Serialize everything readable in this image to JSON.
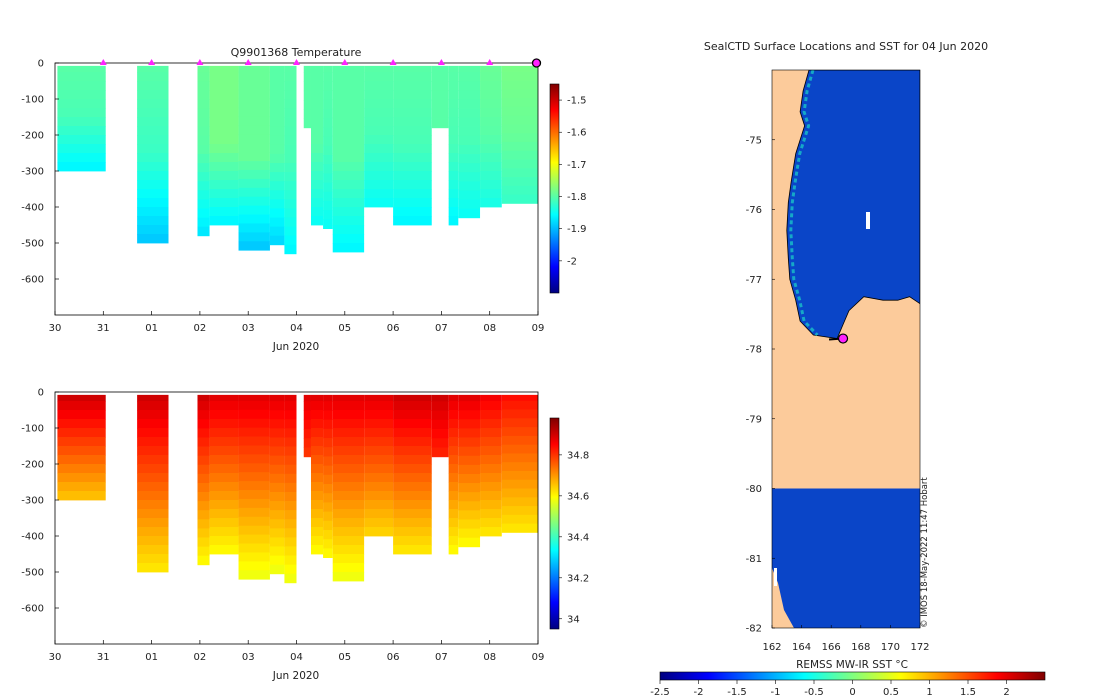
{
  "colors": {
    "land": "#fccb9b",
    "sea_cold": "#0a45c8",
    "marker": "#ff22ff",
    "marker_edge": "#000000",
    "axis": "#000000"
  },
  "chart_data": [
    {
      "type": "heatmap",
      "id": "temperature",
      "title": "Q9901368  Temperature",
      "xlabel": "Jun 2020",
      "ylabel": "",
      "x_tick_labels": [
        "30",
        "31",
        "01",
        "02",
        "03",
        "04",
        "05",
        "06",
        "07",
        "08",
        "09"
      ],
      "x_tick_days": [
        0,
        1,
        2,
        3,
        4,
        5,
        6,
        7,
        8,
        9,
        10
      ],
      "xlim": [
        0,
        10
      ],
      "ylim": [
        -700,
        0
      ],
      "y_ticks": [
        0,
        -100,
        -200,
        -300,
        -400,
        -500,
        -600
      ],
      "colorbar": {
        "range": [
          -2.1,
          -1.45
        ],
        "ticks": [
          -1.5,
          -1.6,
          -1.7,
          -1.8,
          -1.9,
          -2
        ],
        "tick_labels": [
          "-1.5",
          "-1.6",
          "-1.7",
          "-1.8",
          "-1.9",
          "-2"
        ],
        "colormap": "jet"
      },
      "profile_days": [
        1,
        2,
        3,
        4,
        5,
        6,
        7,
        8,
        9,
        10
      ],
      "profiles": [
        {
          "t0": 0.05,
          "t1": 1.05,
          "depth": 300,
          "top": -1.8,
          "mid": -1.81,
          "bottom": -1.86
        },
        {
          "t0": 1.7,
          "t1": 2.35,
          "depth": 500,
          "top": -1.8,
          "mid": -1.82,
          "bottom": -1.89
        },
        {
          "t0": 2.95,
          "t1": 3.2,
          "depth": 480,
          "top": -1.79,
          "mid": -1.8,
          "bottom": -1.87
        },
        {
          "t0": 3.2,
          "t1": 3.8,
          "depth": 450,
          "top": -1.78,
          "mid": -1.78,
          "bottom": -1.86
        },
        {
          "t0": 3.8,
          "t1": 4.45,
          "depth": 520,
          "top": -1.79,
          "mid": -1.79,
          "bottom": -1.89
        },
        {
          "t0": 4.45,
          "t1": 4.75,
          "depth": 505,
          "top": -1.8,
          "mid": -1.8,
          "bottom": -1.88
        },
        {
          "t0": 4.75,
          "t1": 5.0,
          "depth": 530,
          "top": -1.8,
          "mid": -1.81,
          "bottom": -1.86
        },
        {
          "t0": 5.15,
          "t1": 5.3,
          "depth": 180,
          "top": -1.8,
          "mid": -1.8,
          "bottom": -1.8
        },
        {
          "t0": 5.3,
          "t1": 5.55,
          "depth": 450,
          "top": -1.8,
          "mid": -1.8,
          "bottom": -1.85
        },
        {
          "t0": 5.55,
          "t1": 5.75,
          "depth": 460,
          "top": -1.8,
          "mid": -1.81,
          "bottom": -1.85
        },
        {
          "t0": 5.75,
          "t1": 6.4,
          "depth": 525,
          "top": -1.8,
          "mid": -1.8,
          "bottom": -1.86
        },
        {
          "t0": 6.4,
          "t1": 7.0,
          "depth": 400,
          "top": -1.8,
          "mid": -1.81,
          "bottom": -1.85
        },
        {
          "t0": 7.0,
          "t1": 7.8,
          "depth": 450,
          "top": -1.8,
          "mid": -1.81,
          "bottom": -1.86
        },
        {
          "t0": 7.8,
          "t1": 8.15,
          "depth": 180,
          "top": -1.8,
          "mid": -1.8,
          "bottom": -1.8
        },
        {
          "t0": 8.15,
          "t1": 8.35,
          "depth": 450,
          "top": -1.8,
          "mid": -1.81,
          "bottom": -1.86
        },
        {
          "t0": 8.35,
          "t1": 8.8,
          "depth": 430,
          "top": -1.8,
          "mid": -1.81,
          "bottom": -1.85
        },
        {
          "t0": 8.8,
          "t1": 9.25,
          "depth": 400,
          "top": -1.79,
          "mid": -1.8,
          "bottom": -1.84
        },
        {
          "t0": 9.25,
          "t1": 10.0,
          "depth": 390,
          "top": -1.78,
          "mid": -1.79,
          "bottom": -1.82
        }
      ]
    },
    {
      "type": "heatmap",
      "id": "salinity",
      "title": "",
      "xlabel": "Jun 2020",
      "ylabel": "",
      "x_tick_labels": [
        "30",
        "31",
        "01",
        "02",
        "03",
        "04",
        "05",
        "06",
        "07",
        "08",
        "09"
      ],
      "x_tick_days": [
        0,
        1,
        2,
        3,
        4,
        5,
        6,
        7,
        8,
        9,
        10
      ],
      "xlim": [
        0,
        10
      ],
      "ylim": [
        -700,
        0
      ],
      "y_ticks": [
        0,
        -100,
        -200,
        -300,
        -400,
        -500,
        -600
      ],
      "colorbar": {
        "range": [
          33.95,
          34.98
        ],
        "ticks": [
          34.8,
          34.6,
          34.4,
          34.2,
          34
        ],
        "tick_labels": [
          "34.8",
          "34.6",
          "34.4",
          "34.2",
          "34"
        ],
        "colormap": "jet"
      },
      "profiles": [
        {
          "t0": 0.05,
          "t1": 1.05,
          "depth": 300,
          "top": 34.9,
          "bottom": 34.66
        },
        {
          "t0": 1.7,
          "t1": 2.35,
          "depth": 500,
          "top": 34.9,
          "bottom": 34.62
        },
        {
          "t0": 2.95,
          "t1": 3.2,
          "depth": 480,
          "top": 34.9,
          "bottom": 34.6
        },
        {
          "t0": 3.2,
          "t1": 3.8,
          "depth": 450,
          "top": 34.88,
          "bottom": 34.6
        },
        {
          "t0": 3.8,
          "t1": 4.45,
          "depth": 520,
          "top": 34.88,
          "bottom": 34.58
        },
        {
          "t0": 4.45,
          "t1": 4.75,
          "depth": 505,
          "top": 34.88,
          "bottom": 34.58
        },
        {
          "t0": 4.75,
          "t1": 5.0,
          "depth": 530,
          "top": 34.88,
          "bottom": 34.58
        },
        {
          "t0": 5.15,
          "t1": 5.3,
          "depth": 180,
          "top": 34.88,
          "bottom": 34.8
        },
        {
          "t0": 5.3,
          "t1": 5.55,
          "depth": 450,
          "top": 34.88,
          "bottom": 34.6
        },
        {
          "t0": 5.55,
          "t1": 5.75,
          "depth": 460,
          "top": 34.88,
          "bottom": 34.6
        },
        {
          "t0": 5.75,
          "t1": 6.4,
          "depth": 525,
          "top": 34.88,
          "bottom": 34.58
        },
        {
          "t0": 6.4,
          "t1": 7.0,
          "depth": 400,
          "top": 34.88,
          "bottom": 34.64
        },
        {
          "t0": 7.0,
          "t1": 7.8,
          "depth": 450,
          "top": 34.9,
          "bottom": 34.62
        },
        {
          "t0": 7.8,
          "t1": 8.15,
          "depth": 180,
          "top": 34.9,
          "bottom": 34.82
        },
        {
          "t0": 8.15,
          "t1": 8.35,
          "depth": 450,
          "top": 34.88,
          "bottom": 34.6
        },
        {
          "t0": 8.35,
          "t1": 8.8,
          "depth": 430,
          "top": 34.88,
          "bottom": 34.6
        },
        {
          "t0": 8.8,
          "t1": 9.25,
          "depth": 400,
          "top": 34.86,
          "bottom": 34.62
        },
        {
          "t0": 9.25,
          "t1": 10.0,
          "depth": 390,
          "top": 34.84,
          "bottom": 34.62
        }
      ]
    },
    {
      "type": "heatmap",
      "id": "sst-map",
      "title": "SealCTD Surface Locations and SST for 04 Jun 2020",
      "xlabel": "",
      "xlim": [
        162,
        172
      ],
      "ylim": [
        -82,
        -74
      ],
      "x_ticks": [
        162,
        164,
        166,
        168,
        170,
        172
      ],
      "x_tick_labels": [
        "162",
        "164",
        "166",
        "168",
        "170",
        "172"
      ],
      "y_ticks": [
        -75,
        -76,
        -77,
        -78,
        -79,
        -80,
        -81,
        -82
      ],
      "y_tick_labels": [
        "-75",
        "-76",
        "-77",
        "-78",
        "-79",
        "-80",
        "-81",
        "-82"
      ],
      "sea_temperature_c": -1.8,
      "coastline_lonlat": [
        [
          164.5,
          -74.0
        ],
        [
          164.1,
          -74.3
        ],
        [
          163.9,
          -74.6
        ],
        [
          164.2,
          -74.8
        ],
        [
          163.6,
          -75.2
        ],
        [
          163.3,
          -75.6
        ],
        [
          163.1,
          -75.9
        ],
        [
          163.0,
          -76.3
        ],
        [
          163.1,
          -76.7
        ],
        [
          163.2,
          -77.0
        ],
        [
          163.6,
          -77.3
        ],
        [
          163.9,
          -77.6
        ],
        [
          164.8,
          -77.8
        ],
        [
          166.4,
          -77.85
        ],
        [
          166.8,
          -77.65
        ],
        [
          167.2,
          -77.45
        ],
        [
          168.2,
          -77.25
        ],
        [
          169.5,
          -77.3
        ],
        [
          170.5,
          -77.3
        ],
        [
          171.3,
          -77.25
        ],
        [
          172.0,
          -77.35
        ]
      ],
      "ice_shelf_edge_lat": -80.0,
      "sealctd_location": {
        "lon": 166.8,
        "lat": -77.85
      },
      "colorbar": {
        "label": "REMSS MW-IR SST °C",
        "range": [
          -2.5,
          2.5
        ],
        "ticks": [
          -2.5,
          -2,
          -1.5,
          -1,
          -0.5,
          0,
          0.5,
          1,
          1.5,
          2
        ],
        "tick_labels": [
          "-2.5",
          "-2",
          "-1.5",
          "-1",
          "-0.5",
          "0",
          "0.5",
          "1",
          "1.5",
          "2"
        ],
        "colormap": "jet"
      },
      "credit": "© IMOS 18-May-2022 11:47 Hobart"
    }
  ]
}
